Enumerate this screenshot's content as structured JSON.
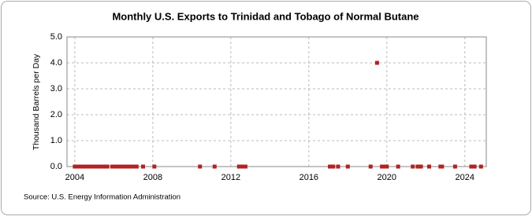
{
  "chart_data": {
    "type": "scatter",
    "title": "Monthly U.S. Exports to Trinidad and Tobago of Normal Butane",
    "y_label": "Thousand Barrels per Day",
    "source": "Source: U.S. Energy Information Administration",
    "x": [
      2004.0,
      2004.08,
      2004.17,
      2004.25,
      2004.33,
      2004.42,
      2004.5,
      2004.58,
      2004.67,
      2004.75,
      2004.83,
      2004.92,
      2005.0,
      2005.08,
      2005.17,
      2005.25,
      2005.33,
      2005.42,
      2005.5,
      2005.58,
      2005.67,
      2005.92,
      2006.0,
      2006.08,
      2006.17,
      2006.25,
      2006.33,
      2006.42,
      2006.5,
      2006.58,
      2006.67,
      2006.75,
      2006.83,
      2006.92,
      2007.0,
      2007.08,
      2007.17,
      2007.5,
      2008.08,
      2010.42,
      2011.17,
      2012.42,
      2012.5,
      2012.58,
      2012.67,
      2012.75,
      2017.08,
      2017.17,
      2017.25,
      2017.5,
      2018.0,
      2019.17,
      2019.5,
      2019.75,
      2019.92,
      2020.0,
      2020.58,
      2021.33,
      2021.58,
      2021.67,
      2021.75,
      2022.17,
      2022.75,
      2022.83,
      2023.5,
      2024.33,
      2024.42,
      2024.5,
      2024.83
    ],
    "values": [
      0,
      0,
      0,
      0,
      0,
      0,
      0,
      0,
      0,
      0,
      0,
      0,
      0,
      0,
      0,
      0,
      0,
      0,
      0,
      0,
      0,
      0,
      0,
      0,
      0,
      0,
      0,
      0,
      0,
      0,
      0,
      0,
      0,
      0,
      0,
      0,
      0,
      0,
      0,
      0,
      0,
      0,
      0,
      0,
      0,
      0,
      0,
      0,
      0,
      0,
      0,
      0,
      4,
      0,
      0,
      0,
      0,
      0,
      0,
      0,
      0,
      0,
      0,
      0,
      0,
      0,
      0,
      0,
      0
    ],
    "color": "#b22222",
    "xlim": [
      2003.6,
      2025.1
    ],
    "xticks": [
      2004,
      2008,
      2012,
      2016,
      2020,
      2024
    ],
    "ylim": [
      0,
      5
    ],
    "yticks": [
      {
        "value": 0,
        "label": "0.0"
      },
      {
        "value": 1,
        "label": "1.0"
      },
      {
        "value": 2,
        "label": "2.0"
      },
      {
        "value": 3,
        "label": "3.0"
      },
      {
        "value": 4,
        "label": "4.0"
      },
      {
        "value": 5,
        "label": "5.0"
      }
    ],
    "grid": true
  }
}
